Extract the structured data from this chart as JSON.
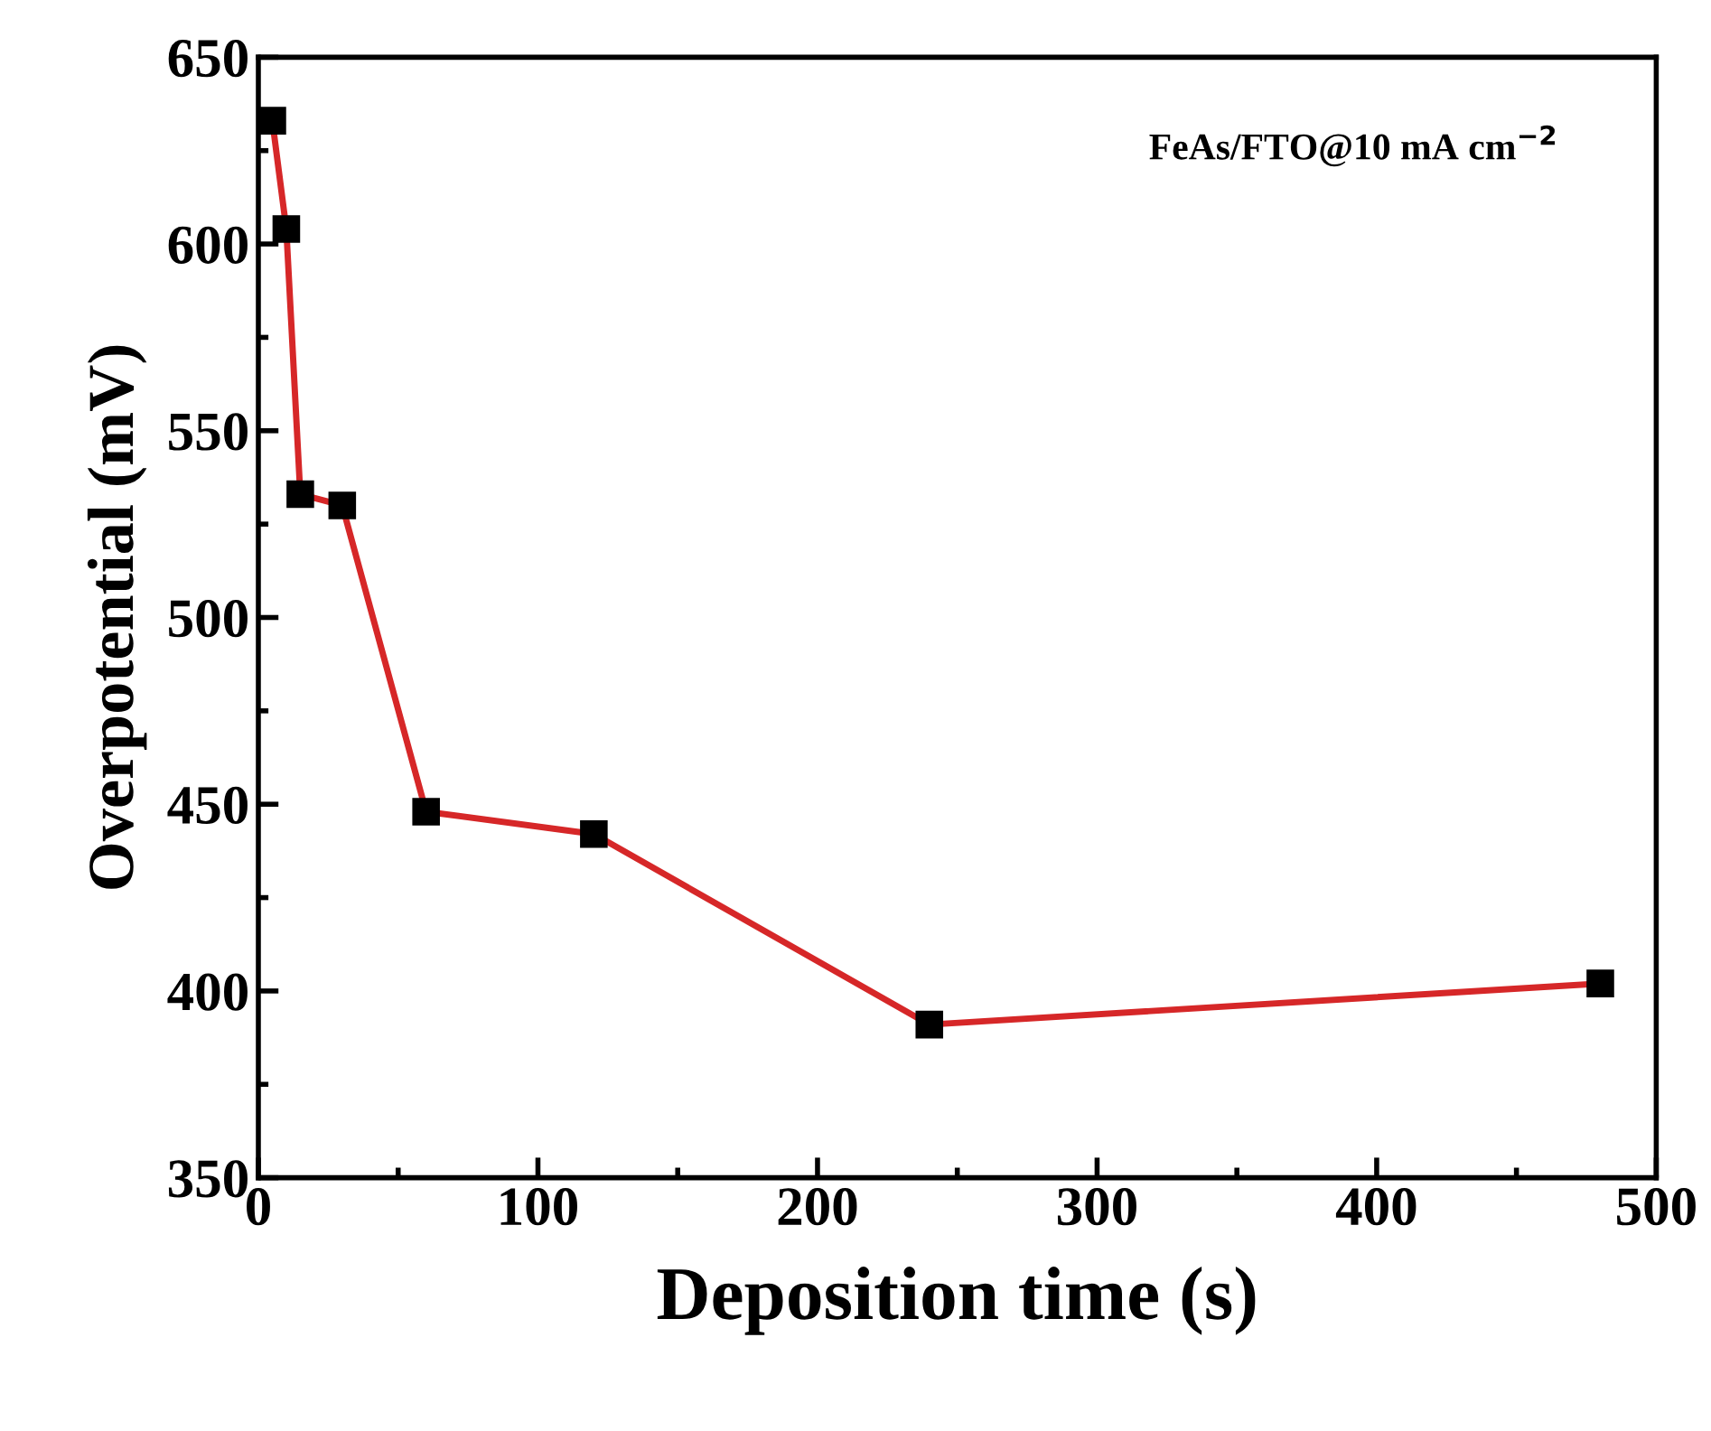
{
  "chart_data": {
    "type": "line",
    "xlabel": "Deposition time (s)",
    "ylabel": "Overpotential (mV)",
    "annotations": [
      "FeAs/FTO@10 mA cm$^{−2}$"
    ],
    "x": [
      5,
      10,
      15,
      30,
      60,
      120,
      240,
      480
    ],
    "series": [
      {
        "color": "#d62728",
        "values": [
          633,
          604,
          533,
          530,
          448,
          442,
          391,
          402
        ]
      }
    ],
    "marker": "square",
    "line_style": "solid",
    "grid": false,
    "legend": false,
    "xlim": [
      0,
      500
    ],
    "xticks": [
      0,
      100,
      200,
      300,
      400,
      500
    ],
    "ylim": [
      350,
      650
    ],
    "yticks": [
      350,
      400,
      450,
      500,
      550,
      600,
      650
    ]
  }
}
